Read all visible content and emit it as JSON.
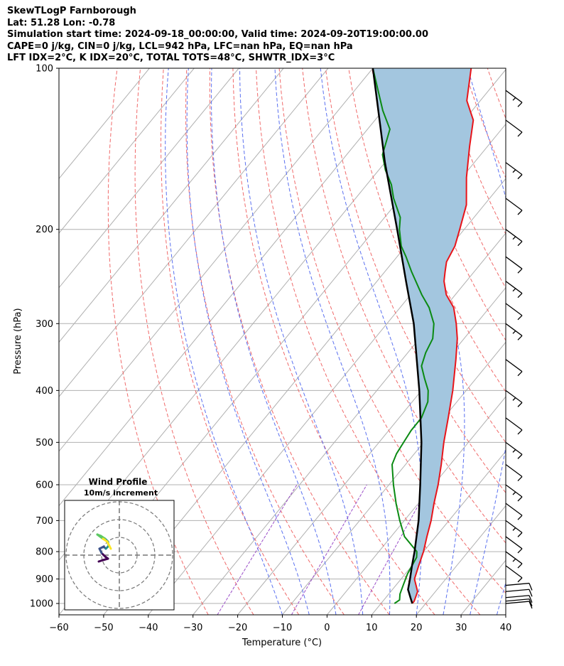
{
  "header": {
    "title": "SkewTLogP Farnborough",
    "location": "Lat: 51.28   Lon: -0.78",
    "times": "Simulation start time: 2024-09-18_00:00:00, Valid time: 2024-09-20T19:00:00.00",
    "params1": "CAPE=0 j/kg, CIN=0 j/kg, LCL=942 hPa, LFC=nan hPa, EQ=nan hPa",
    "params2": "LFT IDX=2°C, K IDX=20°C, TOTAL TOTS=48°C, SHWTR_IDX=3°C"
  },
  "chart_data": {
    "type": "line",
    "subtype": "skew-T log-p diagram",
    "xlabel": "Temperature (°C)",
    "ylabel": "Pressure (hPa)",
    "xlim": [
      -60,
      40
    ],
    "ylim": [
      1050,
      100
    ],
    "x_ticks": [
      "−60",
      "−50",
      "−40",
      "−30",
      "−20",
      "−10",
      "0",
      "10",
      "20",
      "30",
      "40"
    ],
    "y_ticks": [
      {
        "p": 100,
        "label": "100"
      },
      {
        "p": 200,
        "label": "200"
      },
      {
        "p": 300,
        "label": "300"
      },
      {
        "p": 400,
        "label": "400"
      },
      {
        "p": 500,
        "label": "500"
      },
      {
        "p": 600,
        "label": "600"
      },
      {
        "p": 700,
        "label": "700"
      },
      {
        "p": 800,
        "label": "800"
      },
      {
        "p": 900,
        "label": "900"
      },
      {
        "p": 1000,
        "label": "1000"
      }
    ],
    "colors": {
      "temperature": "#e8141a",
      "dewpoint": "#0a8a12",
      "parcel": "#000000",
      "fill": "#a3c6df",
      "dry_adiabat": "#f06a6a",
      "moist_adiabat": "#5a70f0",
      "mixing_ratio": "#9a4dc8",
      "isotherm": "#b0b0b0"
    },
    "series": [
      {
        "name": "Temperature",
        "points": [
          [
            1000,
            17
          ],
          [
            990,
            17
          ],
          [
            950,
            16
          ],
          [
            900,
            13
          ],
          [
            850,
            11.5
          ],
          [
            800,
            10
          ],
          [
            750,
            8
          ],
          [
            700,
            6
          ],
          [
            650,
            3.5
          ],
          [
            600,
            1
          ],
          [
            550,
            -2
          ],
          [
            500,
            -5.5
          ],
          [
            450,
            -9
          ],
          [
            400,
            -13
          ],
          [
            350,
            -18
          ],
          [
            320,
            -21.5
          ],
          [
            300,
            -24.5
          ],
          [
            280,
            -28
          ],
          [
            265,
            -32
          ],
          [
            250,
            -35
          ],
          [
            240,
            -36.5
          ],
          [
            230,
            -38
          ],
          [
            215,
            -39
          ],
          [
            200,
            -41
          ],
          [
            180,
            -44
          ],
          [
            160,
            -49
          ],
          [
            140,
            -54
          ],
          [
            125,
            -58
          ],
          [
            115,
            -63
          ],
          [
            100,
            -68
          ]
        ]
      },
      {
        "name": "Dewpoint",
        "points": [
          [
            1000,
            13
          ],
          [
            985,
            13.5
          ],
          [
            960,
            12.5
          ],
          [
            920,
            11.5
          ],
          [
            880,
            10.5
          ],
          [
            850,
            10
          ],
          [
            820,
            9.5
          ],
          [
            800,
            8.5
          ],
          [
            750,
            3
          ],
          [
            700,
            -1
          ],
          [
            650,
            -5
          ],
          [
            600,
            -9
          ],
          [
            550,
            -13
          ],
          [
            525,
            -14
          ],
          [
            500,
            -14.5
          ],
          [
            475,
            -15
          ],
          [
            450,
            -15
          ],
          [
            420,
            -16.5
          ],
          [
            400,
            -18.5
          ],
          [
            380,
            -21.5
          ],
          [
            360,
            -24.5
          ],
          [
            340,
            -26
          ],
          [
            320,
            -27
          ],
          [
            300,
            -29.5
          ],
          [
            280,
            -33.5
          ],
          [
            265,
            -37.5
          ],
          [
            240,
            -44
          ],
          [
            225,
            -48
          ],
          [
            215,
            -51
          ],
          [
            200,
            -54.5
          ],
          [
            190,
            -56.5
          ],
          [
            175,
            -61.5
          ],
          [
            165,
            -64.5
          ],
          [
            155,
            -68.5
          ],
          [
            145,
            -72
          ],
          [
            130,
            -75
          ],
          [
            120,
            -80
          ],
          [
            100,
            -90
          ]
        ]
      },
      {
        "name": "Parcel",
        "points": [
          [
            1000,
            17
          ],
          [
            975,
            15.5
          ],
          [
            950,
            14
          ],
          [
            942,
            13.5
          ],
          [
            900,
            12
          ],
          [
            850,
            10
          ],
          [
            800,
            8
          ],
          [
            700,
            3.2
          ],
          [
            600,
            -3
          ],
          [
            500,
            -10.5
          ],
          [
            400,
            -20.5
          ],
          [
            300,
            -34
          ],
          [
            250,
            -43.5
          ],
          [
            200,
            -55
          ],
          [
            150,
            -70
          ],
          [
            120,
            -81
          ],
          [
            100,
            -90
          ]
        ]
      }
    ],
    "wind_barbs_at_pressure_hPa": [
      1000,
      990,
      975,
      950,
      925,
      850,
      800,
      750,
      700,
      650,
      600,
      550,
      500,
      450,
      400,
      350,
      300,
      275,
      250,
      225,
      200,
      175,
      150,
      125,
      110
    ],
    "inset": {
      "title": "Wind Profile",
      "subtitle": "10m/s increment",
      "rings_ms": [
        10,
        20,
        30
      ],
      "hodograph_colors": [
        "#440154",
        "#3b528b",
        "#21908d",
        "#5dc863",
        "#fde725"
      ]
    }
  }
}
